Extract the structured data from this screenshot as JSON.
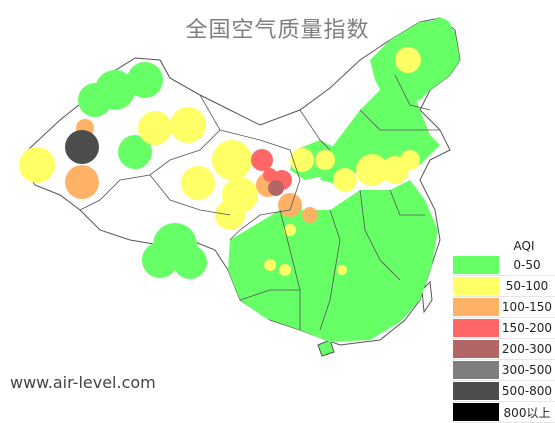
{
  "title": "全国空气质量指数",
  "watermark": "www.air-level.com",
  "legend": {
    "title": "AQI",
    "items": [
      {
        "label": "0-50",
        "color": "#66ff66"
      },
      {
        "label": "50-100",
        "color": "#ffff66"
      },
      {
        "label": "100-150",
        "color": "#ffb266"
      },
      {
        "label": "150-200",
        "color": "#ff6666"
      },
      {
        "label": "200-300",
        "color": "#b26666"
      },
      {
        "label": "300-500",
        "color": "#7f7f7f"
      },
      {
        "label": "500-800",
        "color": "#4d4d4d"
      },
      {
        "label": "800以上",
        "color": "#000000"
      }
    ]
  }
}
